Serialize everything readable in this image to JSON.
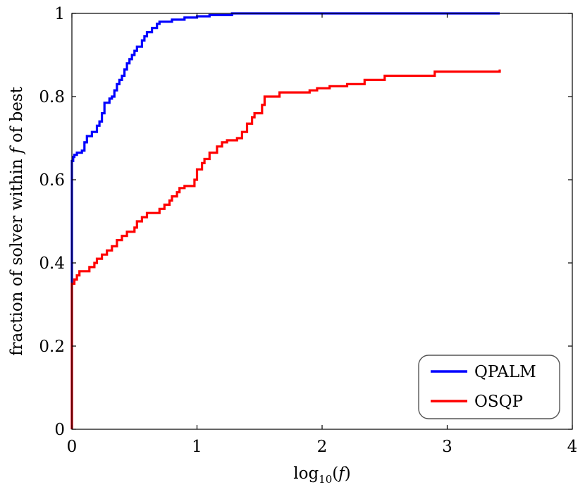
{
  "chart_data": {
    "type": "line",
    "xlabel": "log10(f)",
    "ylabel": "fraction of solver within f of best",
    "xlim": [
      0,
      4
    ],
    "ylim": [
      0,
      1
    ],
    "xticks": [
      "0",
      "1",
      "2",
      "3",
      "4"
    ],
    "yticks": [
      "0",
      "0.2",
      "0.4",
      "0.6",
      "0.8",
      "1"
    ],
    "grid": false,
    "legend_position": "bottom-right",
    "series": [
      {
        "name": "QPALM",
        "color": "#0000ff",
        "step": true,
        "points": [
          [
            0,
            0
          ],
          [
            0,
            0.645
          ],
          [
            0.01,
            0.655
          ],
          [
            0.02,
            0.66
          ],
          [
            0.04,
            0.665
          ],
          [
            0.08,
            0.67
          ],
          [
            0.1,
            0.69
          ],
          [
            0.12,
            0.705
          ],
          [
            0.16,
            0.715
          ],
          [
            0.2,
            0.73
          ],
          [
            0.22,
            0.74
          ],
          [
            0.24,
            0.76
          ],
          [
            0.26,
            0.785
          ],
          [
            0.3,
            0.795
          ],
          [
            0.32,
            0.8
          ],
          [
            0.34,
            0.815
          ],
          [
            0.36,
            0.83
          ],
          [
            0.38,
            0.84
          ],
          [
            0.4,
            0.85
          ],
          [
            0.42,
            0.865
          ],
          [
            0.44,
            0.88
          ],
          [
            0.46,
            0.89
          ],
          [
            0.48,
            0.9
          ],
          [
            0.5,
            0.91
          ],
          [
            0.52,
            0.92
          ],
          [
            0.56,
            0.935
          ],
          [
            0.58,
            0.945
          ],
          [
            0.6,
            0.955
          ],
          [
            0.64,
            0.965
          ],
          [
            0.68,
            0.975
          ],
          [
            0.7,
            0.98
          ],
          [
            0.8,
            0.985
          ],
          [
            0.9,
            0.99
          ],
          [
            1.0,
            0.993
          ],
          [
            1.1,
            0.996
          ],
          [
            1.28,
            1.0
          ],
          [
            3.42,
            1.0
          ]
        ]
      },
      {
        "name": "OSQP",
        "color": "#ff0000",
        "step": true,
        "points": [
          [
            0,
            0
          ],
          [
            0,
            0.35
          ],
          [
            0.02,
            0.36
          ],
          [
            0.04,
            0.37
          ],
          [
            0.06,
            0.38
          ],
          [
            0.14,
            0.39
          ],
          [
            0.18,
            0.4
          ],
          [
            0.2,
            0.41
          ],
          [
            0.24,
            0.42
          ],
          [
            0.28,
            0.43
          ],
          [
            0.32,
            0.44
          ],
          [
            0.36,
            0.455
          ],
          [
            0.4,
            0.465
          ],
          [
            0.44,
            0.475
          ],
          [
            0.5,
            0.485
          ],
          [
            0.52,
            0.5
          ],
          [
            0.56,
            0.51
          ],
          [
            0.6,
            0.52
          ],
          [
            0.7,
            0.53
          ],
          [
            0.74,
            0.54
          ],
          [
            0.78,
            0.55
          ],
          [
            0.8,
            0.56
          ],
          [
            0.84,
            0.57
          ],
          [
            0.86,
            0.58
          ],
          [
            0.9,
            0.585
          ],
          [
            0.98,
            0.6
          ],
          [
            1.0,
            0.625
          ],
          [
            1.04,
            0.64
          ],
          [
            1.06,
            0.65
          ],
          [
            1.1,
            0.665
          ],
          [
            1.16,
            0.68
          ],
          [
            1.2,
            0.69
          ],
          [
            1.24,
            0.695
          ],
          [
            1.32,
            0.7
          ],
          [
            1.36,
            0.715
          ],
          [
            1.4,
            0.735
          ],
          [
            1.44,
            0.75
          ],
          [
            1.46,
            0.76
          ],
          [
            1.52,
            0.78
          ],
          [
            1.54,
            0.8
          ],
          [
            1.66,
            0.81
          ],
          [
            1.9,
            0.815
          ],
          [
            1.96,
            0.82
          ],
          [
            2.06,
            0.825
          ],
          [
            2.2,
            0.83
          ],
          [
            2.34,
            0.84
          ],
          [
            2.5,
            0.85
          ],
          [
            2.9,
            0.86
          ],
          [
            3.42,
            0.865
          ]
        ]
      }
    ]
  }
}
